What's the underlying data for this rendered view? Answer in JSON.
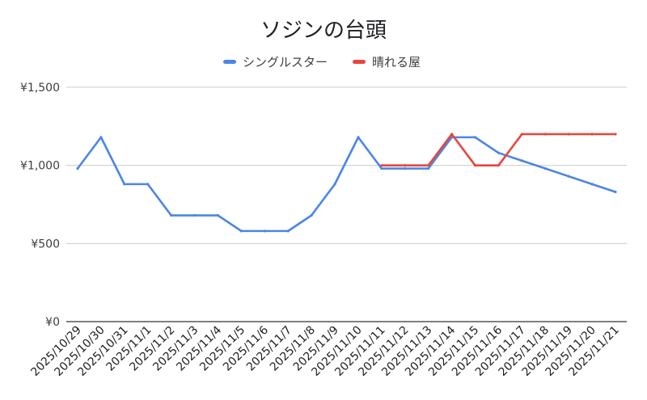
{
  "chart_data": {
    "type": "line",
    "title": "ソジンの台頭",
    "xlabel": "",
    "ylabel": "",
    "categories": [
      "2025/10/29",
      "2025/10/30",
      "2025/10/31",
      "2025/11/1",
      "2025/11/2",
      "2025/11/3",
      "2025/11/4",
      "2025/11/5",
      "2025/11/6",
      "2025/11/7",
      "2025/11/8",
      "2025/11/9",
      "2025/11/10",
      "2025/11/11",
      "2025/11/12",
      "2025/11/13",
      "2025/11/14",
      "2025/11/15",
      "2025/11/16",
      "2025/11/17",
      "2025/11/18",
      "2025/11/19",
      "2025/11/20",
      "2025/11/21"
    ],
    "ylim": [
      0,
      1500
    ],
    "yticks": [
      {
        "value": 0,
        "label": "¥0"
      },
      {
        "value": 500,
        "label": "¥500"
      },
      {
        "value": 1000,
        "label": "¥1,000"
      },
      {
        "value": 1500,
        "label": "¥1,500"
      }
    ],
    "grid": true,
    "legend_position": "top",
    "series": [
      {
        "name": "シングルスター",
        "color": "#4a86e8",
        "values": [
          980,
          1180,
          880,
          880,
          680,
          680,
          680,
          580,
          580,
          580,
          680,
          880,
          1180,
          980,
          980,
          980,
          1180,
          1180,
          1080,
          1030,
          980,
          930,
          880,
          830
        ]
      },
      {
        "name": "晴れる屋",
        "color": "#e8453c",
        "values": [
          null,
          null,
          null,
          null,
          null,
          null,
          null,
          null,
          null,
          null,
          null,
          null,
          null,
          1000,
          1000,
          1000,
          1200,
          1000,
          1000,
          1200,
          1200,
          1200,
          1200,
          1200
        ]
      }
    ]
  }
}
